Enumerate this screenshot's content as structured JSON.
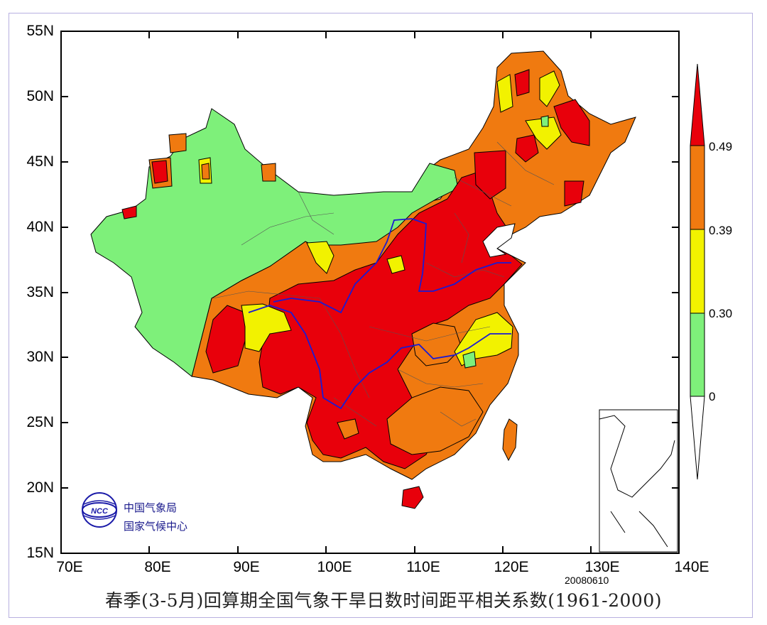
{
  "title": "春季(3-5月)回算期全国气象干旱日数时间距平相关系数(1961-2000)",
  "date_stamp": "20080610",
  "logo": {
    "line1": "中国气象局",
    "line2": "国家气候中心",
    "emblem_icon": "ncc-emblem-icon",
    "emblem_text": "NCC"
  },
  "axes": {
    "x_ticks": [
      "70E",
      "80E",
      "90E",
      "100E",
      "110E",
      "120E",
      "130E",
      "140E"
    ],
    "y_ticks": [
      "55N",
      "50N",
      "45N",
      "40N",
      "35N",
      "30N",
      "25N",
      "20N",
      "15N"
    ],
    "lon_range": [
      70,
      140
    ],
    "lat_range": [
      15,
      55
    ]
  },
  "colorbar": {
    "levels": [
      "0.49",
      "0.39",
      "0.30",
      "0"
    ],
    "colors": {
      "above_0.49": "#e8000b",
      "0.39_0.49": "#f07a10",
      "0.30_0.39": "#f2f200",
      "0_0.30": "#7ef07a",
      "below_0": "#ffffff"
    }
  },
  "map": {
    "river_color": "#1a1ad4",
    "boundary_color": "#555555"
  }
}
